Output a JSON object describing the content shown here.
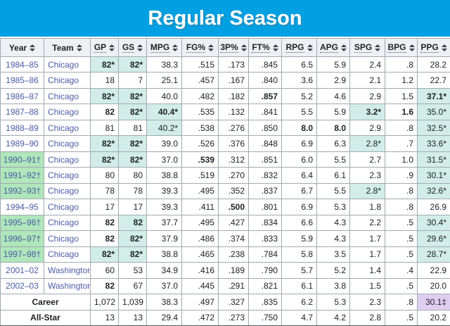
{
  "title": "Regular Season",
  "colors": {
    "title_bar_blue": "#00a0e3",
    "league_leader_highlight": "#d2ede8",
    "championship_year_highlight": "#afe6ba",
    "nba_record_highlight": "#e0cef2",
    "link_blue": "#4a5ba6",
    "header_row_bg": "#eef1f4",
    "cell_border": "#a2a9b1"
  },
  "icons": {
    "sort": "sort-up-down-triangles"
  },
  "table": {
    "columns": [
      {
        "key": "year",
        "label": "Year",
        "abbr": false
      },
      {
        "key": "team",
        "label": "Team",
        "abbr": false
      },
      {
        "key": "gp",
        "label": "GP",
        "abbr": true
      },
      {
        "key": "gs",
        "label": "GS",
        "abbr": true
      },
      {
        "key": "mpg",
        "label": "MPG",
        "abbr": true
      },
      {
        "key": "fg-pct",
        "label": "FG%",
        "abbr": true
      },
      {
        "key": "3p-pct",
        "label": "3P%",
        "abbr": true
      },
      {
        "key": "ft-pct",
        "label": "FT%",
        "abbr": true
      },
      {
        "key": "rpg",
        "label": "RPG",
        "abbr": true
      },
      {
        "key": "apg",
        "label": "APG",
        "abbr": true
      },
      {
        "key": "spg",
        "label": "SPG",
        "abbr": true
      },
      {
        "key": "bpg",
        "label": "BPG",
        "abbr": true
      },
      {
        "key": "ppg",
        "label": "PPG",
        "abbr": true
      }
    ],
    "rows": [
      {
        "cells": [
          {
            "t": "1984–85",
            "link": true
          },
          {
            "t": "Chicago",
            "link": true
          },
          {
            "t": "82*",
            "b": true,
            "bg": "lead"
          },
          {
            "t": "82*",
            "b": true,
            "bg": "lead"
          },
          {
            "t": "38.3"
          },
          {
            "t": ".515"
          },
          {
            "t": ".173"
          },
          {
            "t": ".845"
          },
          {
            "t": "6.5"
          },
          {
            "t": "5.9"
          },
          {
            "t": "2.4"
          },
          {
            "t": ".8"
          },
          {
            "t": "28.2"
          }
        ]
      },
      {
        "cells": [
          {
            "t": "1985–86",
            "link": true
          },
          {
            "t": "Chicago",
            "link": true
          },
          {
            "t": "18"
          },
          {
            "t": "7"
          },
          {
            "t": "25.1"
          },
          {
            "t": ".457"
          },
          {
            "t": ".167"
          },
          {
            "t": ".840"
          },
          {
            "t": "3.6"
          },
          {
            "t": "2.9"
          },
          {
            "t": "2.1"
          },
          {
            "t": "1.2"
          },
          {
            "t": "22.7"
          }
        ]
      },
      {
        "cells": [
          {
            "t": "1986–87",
            "link": true
          },
          {
            "t": "Chicago",
            "link": true
          },
          {
            "t": "82*",
            "b": true,
            "bg": "lead"
          },
          {
            "t": "82*",
            "b": true,
            "bg": "lead"
          },
          {
            "t": "40.0"
          },
          {
            "t": ".482"
          },
          {
            "t": ".182"
          },
          {
            "t": ".857",
            "b": true
          },
          {
            "t": "5.2"
          },
          {
            "t": "4.6"
          },
          {
            "t": "2.9"
          },
          {
            "t": "1.5"
          },
          {
            "t": "37.1*",
            "b": true,
            "bg": "lead"
          }
        ]
      },
      {
        "cells": [
          {
            "t": "1987–88",
            "link": true
          },
          {
            "t": "Chicago",
            "link": true
          },
          {
            "t": "82",
            "b": true
          },
          {
            "t": "82*",
            "b": true,
            "bg": "lead"
          },
          {
            "t": "40.4*",
            "b": true,
            "bg": "lead"
          },
          {
            "t": ".535"
          },
          {
            "t": ".132"
          },
          {
            "t": ".841"
          },
          {
            "t": "5.5"
          },
          {
            "t": "5.9"
          },
          {
            "t": "3.2*",
            "b": true,
            "bg": "lead"
          },
          {
            "t": "1.6",
            "b": true
          },
          {
            "t": "35.0*",
            "bg": "lead"
          }
        ]
      },
      {
        "cells": [
          {
            "t": "1988–89",
            "link": true
          },
          {
            "t": "Chicago",
            "link": true
          },
          {
            "t": "81"
          },
          {
            "t": "81"
          },
          {
            "t": "40.2*",
            "bg": "lead"
          },
          {
            "t": ".538"
          },
          {
            "t": ".276"
          },
          {
            "t": ".850"
          },
          {
            "t": "8.0",
            "b": true
          },
          {
            "t": "8.0",
            "b": true
          },
          {
            "t": "2.9"
          },
          {
            "t": ".8"
          },
          {
            "t": "32.5*",
            "bg": "lead"
          }
        ]
      },
      {
        "cells": [
          {
            "t": "1989–90",
            "link": true
          },
          {
            "t": "Chicago",
            "link": true
          },
          {
            "t": "82*",
            "b": true,
            "bg": "lead"
          },
          {
            "t": "82*",
            "b": true,
            "bg": "lead"
          },
          {
            "t": "39.0"
          },
          {
            "t": ".526"
          },
          {
            "t": ".376"
          },
          {
            "t": ".848"
          },
          {
            "t": "6.9"
          },
          {
            "t": "6.3"
          },
          {
            "t": "2.8*",
            "bg": "lead"
          },
          {
            "t": ".7"
          },
          {
            "t": "33.6*",
            "bg": "lead"
          }
        ]
      },
      {
        "cells": [
          {
            "t": "1990–91†",
            "link": true,
            "bg": "champ"
          },
          {
            "t": "Chicago",
            "link": true
          },
          {
            "t": "82*",
            "b": true,
            "bg": "lead"
          },
          {
            "t": "82*",
            "b": true,
            "bg": "lead"
          },
          {
            "t": "37.0"
          },
          {
            "t": ".539",
            "b": true
          },
          {
            "t": ".312"
          },
          {
            "t": ".851"
          },
          {
            "t": "6.0"
          },
          {
            "t": "5.5"
          },
          {
            "t": "2.7"
          },
          {
            "t": "1.0"
          },
          {
            "t": "31.5*",
            "bg": "lead"
          }
        ]
      },
      {
        "cells": [
          {
            "t": "1991–92†",
            "link": true,
            "bg": "champ"
          },
          {
            "t": "Chicago",
            "link": true
          },
          {
            "t": "80"
          },
          {
            "t": "80"
          },
          {
            "t": "38.8"
          },
          {
            "t": ".519"
          },
          {
            "t": ".270"
          },
          {
            "t": ".832"
          },
          {
            "t": "6.4"
          },
          {
            "t": "6.1"
          },
          {
            "t": "2.3"
          },
          {
            "t": ".9"
          },
          {
            "t": "30.1*",
            "bg": "lead"
          }
        ]
      },
      {
        "cells": [
          {
            "t": "1992–93†",
            "link": true,
            "bg": "champ"
          },
          {
            "t": "Chicago",
            "link": true
          },
          {
            "t": "78"
          },
          {
            "t": "78"
          },
          {
            "t": "39.3"
          },
          {
            "t": ".495"
          },
          {
            "t": ".352"
          },
          {
            "t": ".837"
          },
          {
            "t": "6.7"
          },
          {
            "t": "5.5"
          },
          {
            "t": "2.8*",
            "bg": "lead"
          },
          {
            "t": ".8"
          },
          {
            "t": "32.6*",
            "bg": "lead"
          }
        ]
      },
      {
        "cells": [
          {
            "t": "1994–95",
            "link": true
          },
          {
            "t": "Chicago",
            "link": true
          },
          {
            "t": "17"
          },
          {
            "t": "17"
          },
          {
            "t": "39.3"
          },
          {
            "t": ".411"
          },
          {
            "t": ".500",
            "b": true
          },
          {
            "t": ".801"
          },
          {
            "t": "6.9"
          },
          {
            "t": "5.3"
          },
          {
            "t": "1.8"
          },
          {
            "t": ".8"
          },
          {
            "t": "26.9"
          }
        ]
      },
      {
        "cells": [
          {
            "t": "1995–96†",
            "link": true,
            "bg": "champ"
          },
          {
            "t": "Chicago",
            "link": true
          },
          {
            "t": "82",
            "b": true
          },
          {
            "t": "82",
            "b": true,
            "bg": "lead"
          },
          {
            "t": "37.7"
          },
          {
            "t": ".495"
          },
          {
            "t": ".427"
          },
          {
            "t": ".834"
          },
          {
            "t": "6.6"
          },
          {
            "t": "4.3"
          },
          {
            "t": "2.2"
          },
          {
            "t": ".5"
          },
          {
            "t": "30.4*",
            "bg": "lead"
          }
        ]
      },
      {
        "cells": [
          {
            "t": "1996–97†",
            "link": true,
            "bg": "champ"
          },
          {
            "t": "Chicago",
            "link": true
          },
          {
            "t": "82",
            "b": true
          },
          {
            "t": "82*",
            "b": true,
            "bg": "lead"
          },
          {
            "t": "37.9"
          },
          {
            "t": ".486"
          },
          {
            "t": ".374"
          },
          {
            "t": ".833"
          },
          {
            "t": "5.9"
          },
          {
            "t": "4.3"
          },
          {
            "t": "1.7"
          },
          {
            "t": ".5"
          },
          {
            "t": "29.6*",
            "bg": "lead"
          }
        ]
      },
      {
        "cells": [
          {
            "t": "1997–98†",
            "link": true,
            "bg": "champ"
          },
          {
            "t": "Chicago",
            "link": true
          },
          {
            "t": "82*",
            "b": true,
            "bg": "lead"
          },
          {
            "t": "82*",
            "b": true,
            "bg": "lead"
          },
          {
            "t": "38.8"
          },
          {
            "t": ".465"
          },
          {
            "t": ".238"
          },
          {
            "t": ".784"
          },
          {
            "t": "5.8"
          },
          {
            "t": "3.5"
          },
          {
            "t": "1.7"
          },
          {
            "t": ".5"
          },
          {
            "t": "28.7*",
            "bg": "lead"
          }
        ]
      },
      {
        "cells": [
          {
            "t": "2001–02",
            "link": true
          },
          {
            "t": "Washington",
            "link": true
          },
          {
            "t": "60"
          },
          {
            "t": "53"
          },
          {
            "t": "34.9"
          },
          {
            "t": ".416"
          },
          {
            "t": ".189"
          },
          {
            "t": ".790"
          },
          {
            "t": "5.7"
          },
          {
            "t": "5.2"
          },
          {
            "t": "1.4"
          },
          {
            "t": ".4"
          },
          {
            "t": "22.9"
          }
        ]
      },
      {
        "cells": [
          {
            "t": "2002–03",
            "link": true
          },
          {
            "t": "Washington",
            "link": true
          },
          {
            "t": "82",
            "b": true
          },
          {
            "t": "67"
          },
          {
            "t": "37.0"
          },
          {
            "t": ".445"
          },
          {
            "t": ".291"
          },
          {
            "t": ".821"
          },
          {
            "t": "6.1"
          },
          {
            "t": "3.8"
          },
          {
            "t": "1.5"
          },
          {
            "t": ".5"
          },
          {
            "t": "20.0"
          }
        ]
      }
    ],
    "footer": [
      {
        "label": "Career",
        "cells": [
          {
            "t": "1,072"
          },
          {
            "t": "1,039"
          },
          {
            "t": "38.3"
          },
          {
            "t": ".497"
          },
          {
            "t": ".327"
          },
          {
            "t": ".835"
          },
          {
            "t": "6.2"
          },
          {
            "t": "5.3"
          },
          {
            "t": "2.3"
          },
          {
            "t": ".8"
          },
          {
            "t": "30.1‡",
            "bg": "record"
          }
        ]
      },
      {
        "label": "All-Star",
        "cells": [
          {
            "t": "13"
          },
          {
            "t": "13"
          },
          {
            "t": "29.4"
          },
          {
            "t": ".472"
          },
          {
            "t": ".273"
          },
          {
            "t": ".750"
          },
          {
            "t": "4.7"
          },
          {
            "t": "4.2"
          },
          {
            "t": "2.8"
          },
          {
            "t": ".5"
          },
          {
            "t": "20.2"
          }
        ]
      }
    ]
  }
}
